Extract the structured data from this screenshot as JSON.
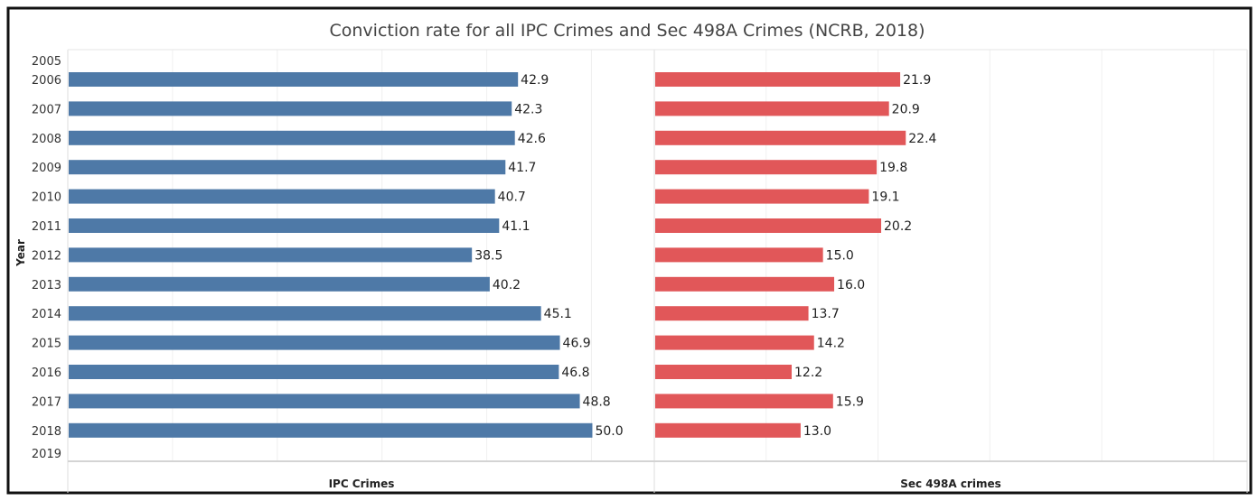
{
  "chart_data": {
    "type": "bar",
    "orientation": "horizontal",
    "title": "Conviction rate for all IPC Crimes and Sec 498A Crimes (NCRB, 2018)",
    "ylabel": "Year",
    "categories": [
      "2005",
      "2006",
      "2007",
      "2008",
      "2009",
      "2010",
      "2011",
      "2012",
      "2013",
      "2014",
      "2015",
      "2016",
      "2017",
      "2018",
      "2019"
    ],
    "panels": [
      {
        "name": "IPC Crimes",
        "color": "#4e79a7",
        "xlim": [
          0,
          56
        ],
        "values": [
          null,
          42.9,
          42.3,
          42.6,
          41.7,
          40.7,
          41.1,
          38.5,
          40.2,
          45.1,
          46.9,
          46.8,
          48.8,
          50.0,
          null
        ]
      },
      {
        "name": "Sec 498A crimes",
        "color": "#e15759",
        "xlim": [
          0,
          53
        ],
        "values": [
          null,
          21.9,
          20.9,
          22.4,
          19.8,
          19.1,
          20.2,
          15.0,
          16.0,
          13.7,
          14.2,
          12.2,
          15.9,
          13.0,
          null
        ]
      }
    ],
    "grid": true,
    "data_labels": true
  }
}
